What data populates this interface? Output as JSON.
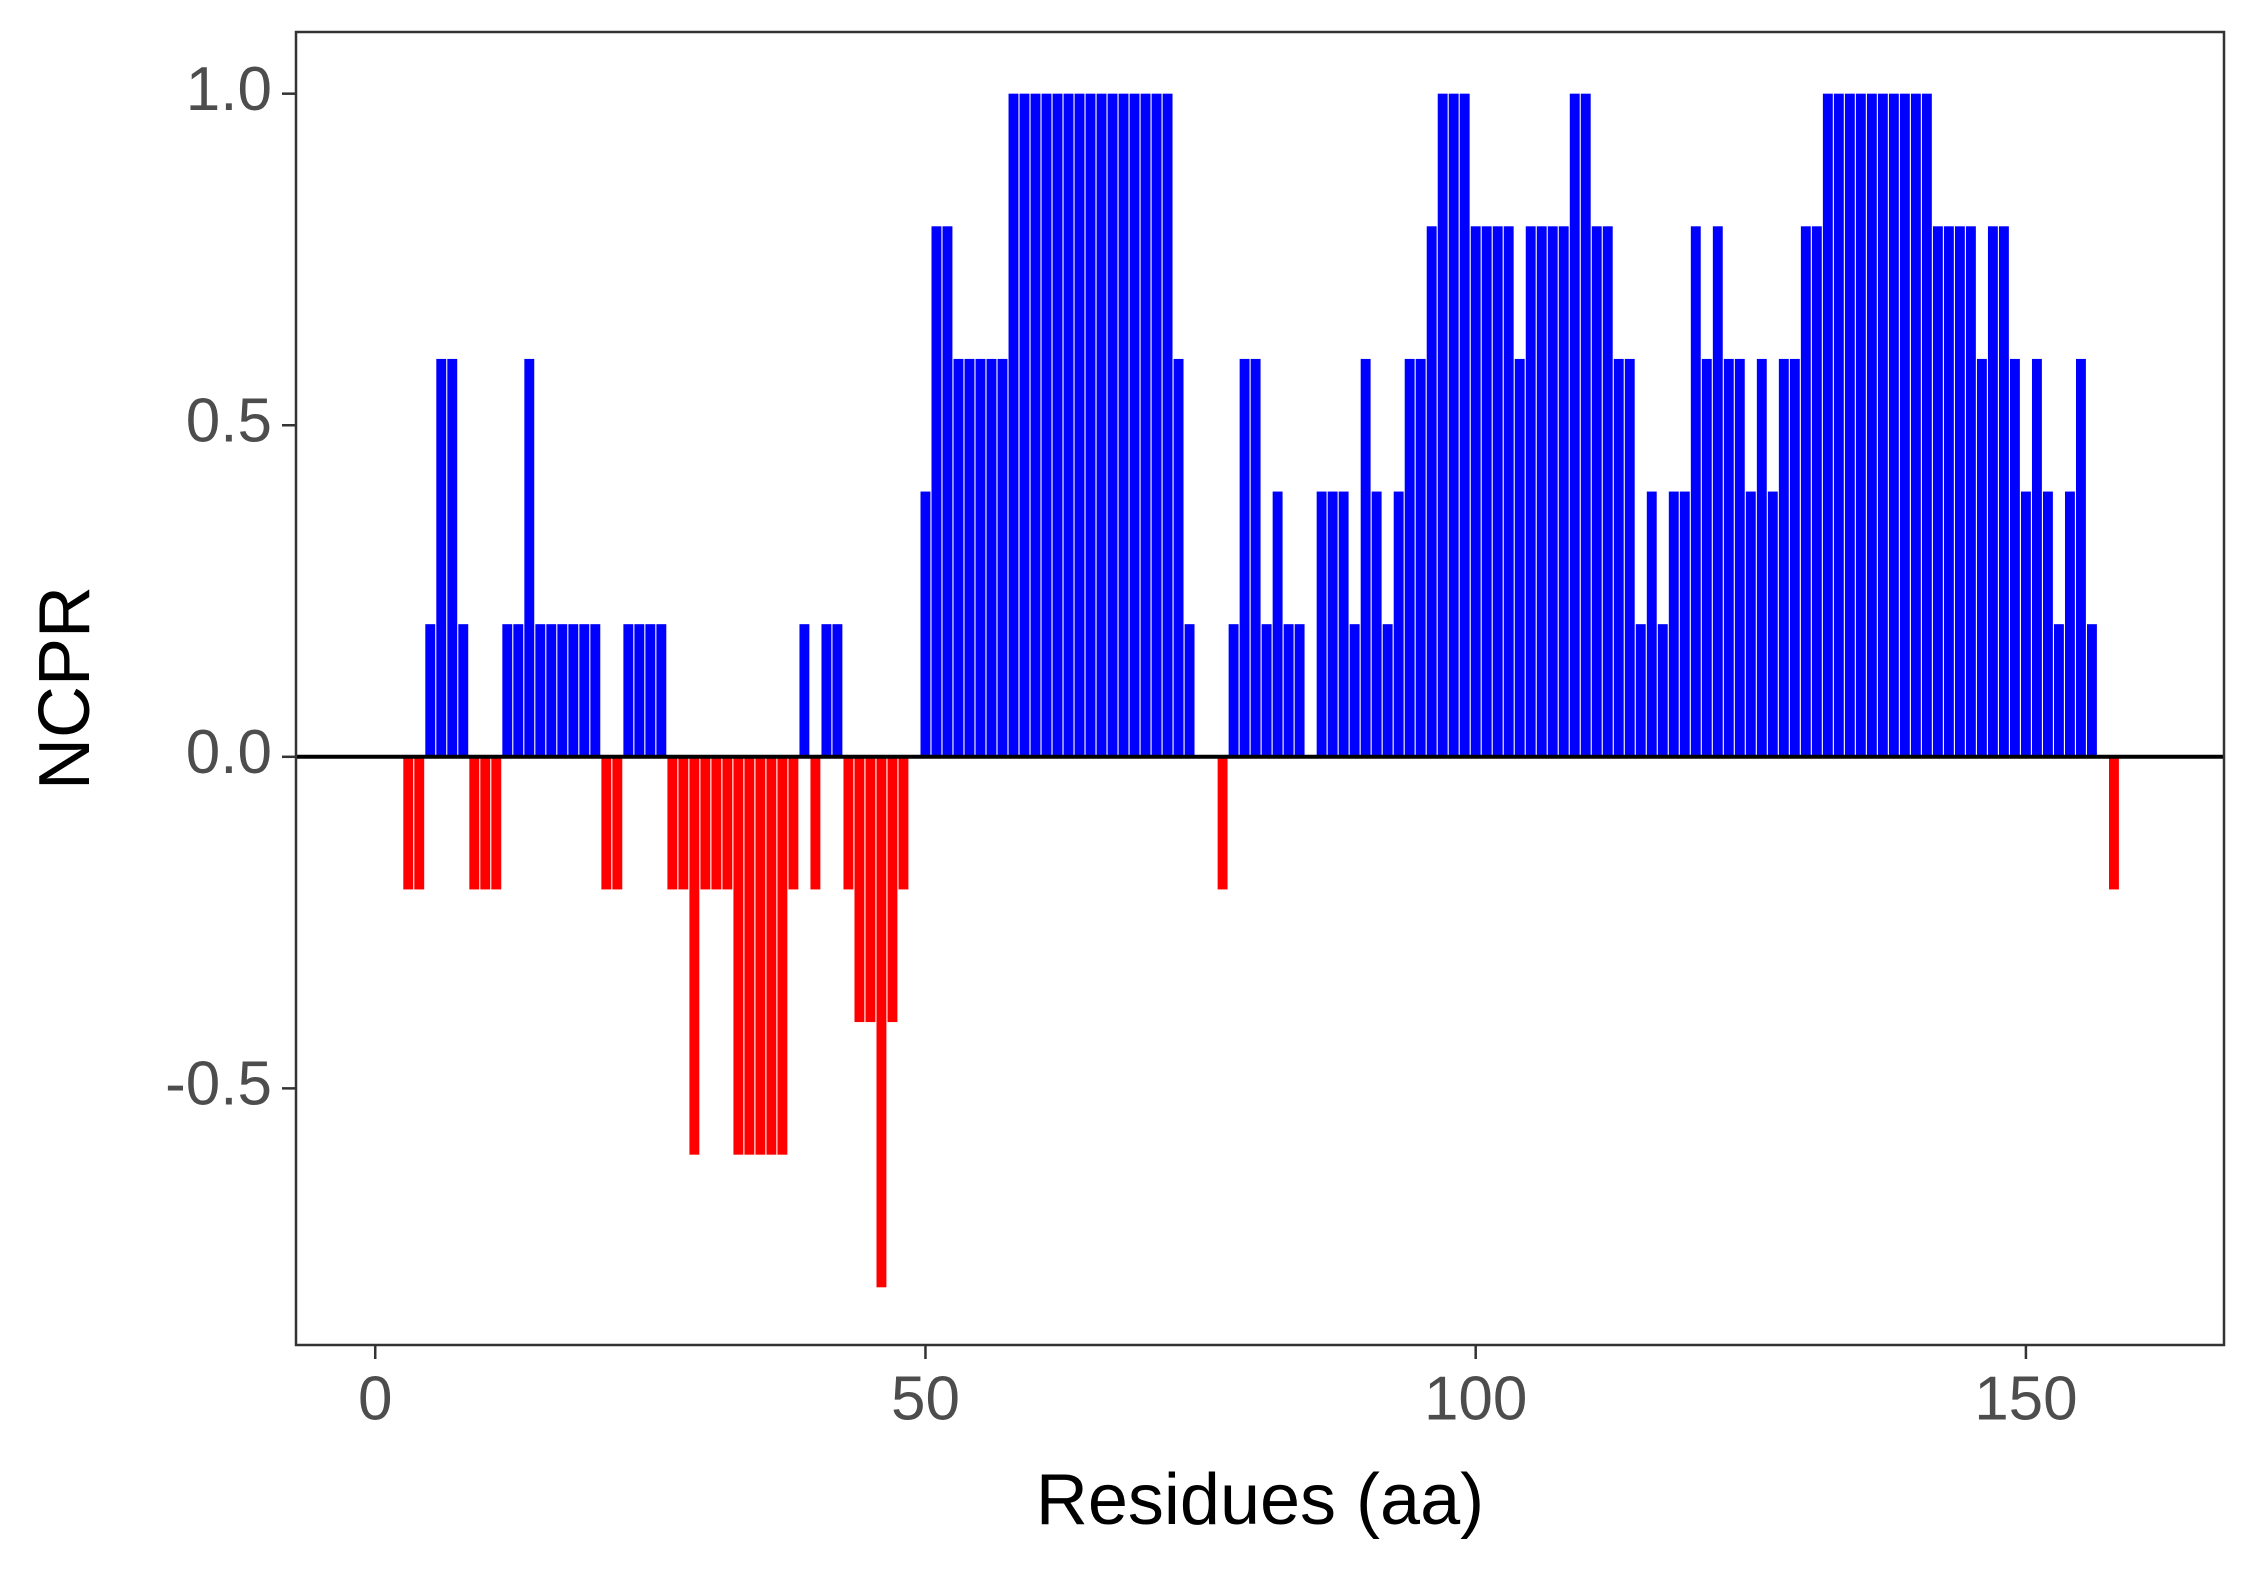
{
  "chart_data": {
    "type": "bar",
    "x_label": "Residues (aa)",
    "y_label": "NCPR",
    "x": [
      1,
      2,
      3,
      4,
      5,
      6,
      7,
      8,
      9,
      10,
      11,
      12,
      13,
      14,
      15,
      16,
      17,
      18,
      19,
      20,
      21,
      22,
      23,
      24,
      25,
      26,
      27,
      28,
      29,
      30,
      31,
      32,
      33,
      34,
      35,
      36,
      37,
      38,
      39,
      40,
      41,
      42,
      43,
      44,
      45,
      46,
      47,
      48,
      49,
      50,
      51,
      52,
      53,
      54,
      55,
      56,
      57,
      58,
      59,
      60,
      61,
      62,
      63,
      64,
      65,
      66,
      67,
      68,
      69,
      70,
      71,
      72,
      73,
      74,
      75,
      76,
      77,
      78,
      79,
      80,
      81,
      82,
      83,
      84,
      85,
      86,
      87,
      88,
      89,
      90,
      91,
      92,
      93,
      94,
      95,
      96,
      97,
      98,
      99,
      100,
      101,
      102,
      103,
      104,
      105,
      106,
      107,
      108,
      109,
      110,
      111,
      112,
      113,
      114,
      115,
      116,
      117,
      118,
      119,
      120,
      121,
      122,
      123,
      124,
      125,
      126,
      127,
      128,
      129,
      130,
      131,
      132,
      133,
      134,
      135,
      136,
      137,
      138,
      139,
      140,
      141,
      142,
      143,
      144,
      145,
      146,
      147,
      148,
      149,
      150,
      151,
      152,
      153,
      154,
      155,
      156,
      157,
      158
    ],
    "values": [
      0,
      0,
      -0.2,
      -0.2,
      0.2,
      0.6,
      0.6,
      0.2,
      -0.2,
      -0.2,
      -0.2,
      0.2,
      0.2,
      0.6,
      0.2,
      0.2,
      0.2,
      0.2,
      0.2,
      0.2,
      -0.2,
      -0.2,
      0.2,
      0.2,
      0.2,
      0.2,
      -0.2,
      -0.2,
      -0.6,
      -0.2,
      -0.2,
      -0.2,
      -0.6,
      -0.6,
      -0.6,
      -0.6,
      -0.6,
      -0.2,
      0.2,
      -0.2,
      0.2,
      0.2,
      -0.2,
      -0.4,
      -0.4,
      -0.8,
      -0.4,
      -0.2,
      0,
      0.4,
      0.8,
      0.8,
      0.6,
      0.6,
      0.6,
      0.6,
      0.6,
      1,
      1,
      1,
      1,
      1,
      1,
      1,
      1,
      1,
      1,
      1,
      1,
      1,
      1,
      1,
      0.6,
      0.2,
      0,
      0,
      -0.2,
      0.2,
      0.6,
      0.6,
      0.2,
      0.4,
      0.2,
      0.2,
      0,
      0.4,
      0.4,
      0.4,
      0.2,
      0.6,
      0.4,
      0.2,
      0.4,
      0.6,
      0.6,
      0.8,
      1,
      1,
      1,
      0.8,
      0.8,
      0.8,
      0.8,
      0.6,
      0.8,
      0.8,
      0.8,
      0.8,
      1,
      1,
      0.8,
      0.8,
      0.6,
      0.6,
      0.2,
      0.4,
      0.2,
      0.4,
      0.4,
      0.8,
      0.6,
      0.8,
      0.6,
      0.6,
      0.4,
      0.6,
      0.4,
      0.6,
      0.6,
      0.8,
      0.8,
      1,
      1,
      1,
      1,
      1,
      1,
      1,
      1,
      1,
      1,
      0.8,
      0.8,
      0.8,
      0.8,
      0.6,
      0.8,
      0.8,
      0.6,
      0.4,
      0.6,
      0.4,
      0.2,
      0.4,
      0.6,
      0.2,
      0,
      -0.2
    ],
    "positive_color": "#0000ff",
    "negative_color": "#ff0000",
    "hline": 0,
    "xlim": [
      -7.2,
      168
    ],
    "ylim": [
      -0.887,
      1.093
    ],
    "xticks": [
      0,
      50,
      100,
      150
    ],
    "yticks": [
      -0.5,
      {
        "value": 0,
        "label": "0.0"
      },
      {
        "value": 0.5,
        "label": "0.5"
      },
      {
        "value": 1,
        "label": "1.0"
      }
    ],
    "grid": false
  }
}
